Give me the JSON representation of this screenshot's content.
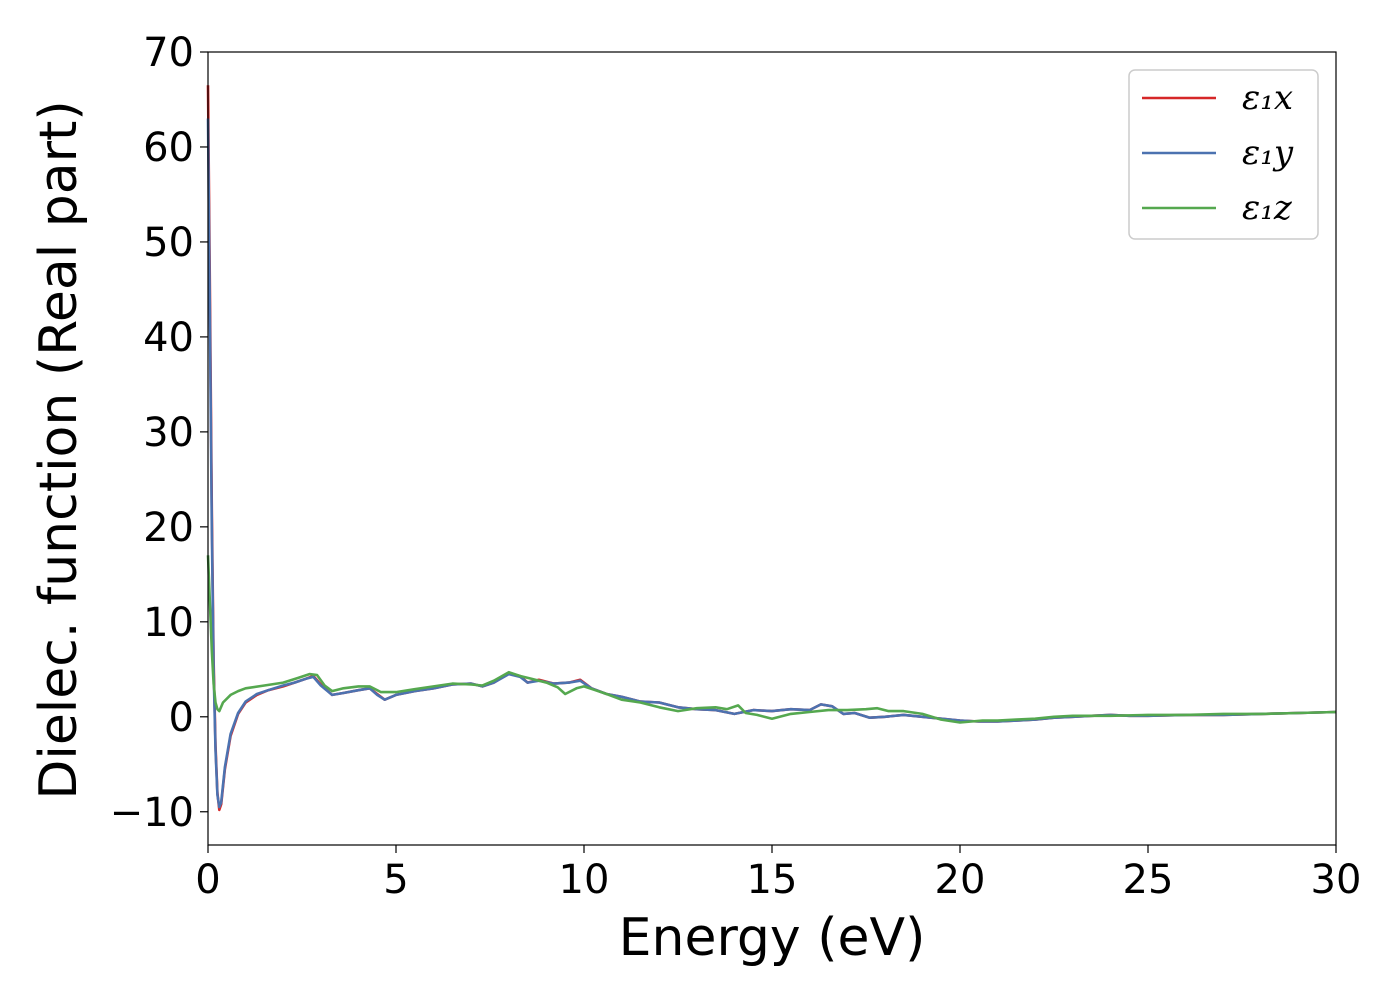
{
  "chart_data": {
    "type": "line",
    "title": "",
    "xlabel": "Energy (eV)",
    "ylabel": "Dielec. function (Real part)",
    "xlim": [
      0,
      30
    ],
    "ylim": [
      -13.5,
      70
    ],
    "xticks": [
      0,
      5,
      10,
      15,
      20,
      25,
      30
    ],
    "yticks": [
      -10,
      0,
      10,
      20,
      30,
      40,
      50,
      60,
      70
    ],
    "xtick_labels": [
      "0",
      "5",
      "10",
      "15",
      "20",
      "25",
      "30"
    ],
    "ytick_labels": [
      "−10",
      "0",
      "10",
      "20",
      "30",
      "40",
      "50",
      "60",
      "70"
    ],
    "grid": false,
    "legend_position": "top-right",
    "series": [
      {
        "name": "ε₁x",
        "color": "#d62728",
        "points": [
          [
            0.0,
            66.5
          ],
          [
            0.05,
            45.0
          ],
          [
            0.1,
            22.0
          ],
          [
            0.15,
            6.0
          ],
          [
            0.2,
            -3.0
          ],
          [
            0.25,
            -8.0
          ],
          [
            0.3,
            -9.8
          ],
          [
            0.35,
            -9.2
          ],
          [
            0.45,
            -5.5
          ],
          [
            0.6,
            -2.0
          ],
          [
            0.8,
            0.3
          ],
          [
            1.0,
            1.5
          ],
          [
            1.3,
            2.3
          ],
          [
            1.6,
            2.8
          ],
          [
            2.0,
            3.2
          ],
          [
            2.3,
            3.6
          ],
          [
            2.6,
            4.0
          ],
          [
            2.8,
            4.3
          ],
          [
            3.0,
            3.4
          ],
          [
            3.3,
            2.3
          ],
          [
            3.6,
            2.5
          ],
          [
            4.0,
            2.8
          ],
          [
            4.3,
            3.0
          ],
          [
            4.5,
            2.4
          ],
          [
            4.7,
            1.8
          ],
          [
            5.0,
            2.3
          ],
          [
            5.5,
            2.7
          ],
          [
            6.0,
            3.0
          ],
          [
            6.5,
            3.4
          ],
          [
            7.0,
            3.5
          ],
          [
            7.3,
            3.2
          ],
          [
            7.6,
            3.6
          ],
          [
            8.0,
            4.6
          ],
          [
            8.3,
            4.3
          ],
          [
            8.5,
            3.6
          ],
          [
            8.8,
            3.9
          ],
          [
            9.2,
            3.5
          ],
          [
            9.6,
            3.6
          ],
          [
            9.9,
            3.9
          ],
          [
            10.2,
            3.0
          ],
          [
            10.6,
            2.4
          ],
          [
            11.0,
            2.1
          ],
          [
            11.5,
            1.6
          ],
          [
            12.0,
            1.5
          ],
          [
            12.5,
            1.0
          ],
          [
            13.0,
            0.8
          ],
          [
            13.5,
            0.7
          ],
          [
            14.0,
            0.3
          ],
          [
            14.5,
            0.7
          ],
          [
            15.0,
            0.6
          ],
          [
            15.5,
            0.8
          ],
          [
            16.0,
            0.7
          ],
          [
            16.3,
            1.3
          ],
          [
            16.6,
            1.1
          ],
          [
            16.9,
            0.3
          ],
          [
            17.2,
            0.4
          ],
          [
            17.6,
            -0.1
          ],
          [
            18.0,
            0.0
          ],
          [
            18.5,
            0.2
          ],
          [
            19.0,
            0.0
          ],
          [
            19.5,
            -0.2
          ],
          [
            20.0,
            -0.4
          ],
          [
            20.5,
            -0.5
          ],
          [
            21.0,
            -0.5
          ],
          [
            21.5,
            -0.4
          ],
          [
            22.0,
            -0.3
          ],
          [
            22.5,
            -0.1
          ],
          [
            23.0,
            0.0
          ],
          [
            23.5,
            0.1
          ],
          [
            24.0,
            0.2
          ],
          [
            24.5,
            0.1
          ],
          [
            25.0,
            0.1
          ],
          [
            26.0,
            0.2
          ],
          [
            27.0,
            0.2
          ],
          [
            28.0,
            0.3
          ],
          [
            29.0,
            0.4
          ],
          [
            30.0,
            0.5
          ]
        ]
      },
      {
        "name": "ε₁y",
        "color": "#4c72b0",
        "points": [
          [
            0.0,
            63.0
          ],
          [
            0.05,
            42.0
          ],
          [
            0.1,
            20.0
          ],
          [
            0.15,
            5.0
          ],
          [
            0.2,
            -3.5
          ],
          [
            0.25,
            -8.2
          ],
          [
            0.3,
            -9.5
          ],
          [
            0.35,
            -9.0
          ],
          [
            0.45,
            -5.3
          ],
          [
            0.6,
            -1.8
          ],
          [
            0.8,
            0.4
          ],
          [
            1.0,
            1.6
          ],
          [
            1.3,
            2.4
          ],
          [
            1.6,
            2.8
          ],
          [
            2.0,
            3.3
          ],
          [
            2.3,
            3.6
          ],
          [
            2.6,
            4.0
          ],
          [
            2.8,
            4.2
          ],
          [
            3.0,
            3.3
          ],
          [
            3.3,
            2.3
          ],
          [
            3.6,
            2.5
          ],
          [
            4.0,
            2.8
          ],
          [
            4.3,
            3.0
          ],
          [
            4.5,
            2.3
          ],
          [
            4.7,
            1.8
          ],
          [
            5.0,
            2.3
          ],
          [
            5.5,
            2.7
          ],
          [
            6.0,
            3.0
          ],
          [
            6.5,
            3.4
          ],
          [
            7.0,
            3.5
          ],
          [
            7.3,
            3.2
          ],
          [
            7.6,
            3.6
          ],
          [
            8.0,
            4.5
          ],
          [
            8.3,
            4.2
          ],
          [
            8.5,
            3.6
          ],
          [
            8.8,
            3.8
          ],
          [
            9.2,
            3.5
          ],
          [
            9.6,
            3.6
          ],
          [
            9.9,
            3.8
          ],
          [
            10.2,
            3.0
          ],
          [
            10.6,
            2.4
          ],
          [
            11.0,
            2.1
          ],
          [
            11.5,
            1.6
          ],
          [
            12.0,
            1.5
          ],
          [
            12.5,
            1.0
          ],
          [
            13.0,
            0.8
          ],
          [
            13.5,
            0.7
          ],
          [
            14.0,
            0.3
          ],
          [
            14.5,
            0.7
          ],
          [
            15.0,
            0.6
          ],
          [
            15.5,
            0.8
          ],
          [
            16.0,
            0.7
          ],
          [
            16.3,
            1.3
          ],
          [
            16.6,
            1.1
          ],
          [
            16.9,
            0.3
          ],
          [
            17.2,
            0.4
          ],
          [
            17.6,
            -0.1
          ],
          [
            18.0,
            0.0
          ],
          [
            18.5,
            0.2
          ],
          [
            19.0,
            0.0
          ],
          [
            19.5,
            -0.2
          ],
          [
            20.0,
            -0.4
          ],
          [
            20.5,
            -0.5
          ],
          [
            21.0,
            -0.5
          ],
          [
            21.5,
            -0.4
          ],
          [
            22.0,
            -0.3
          ],
          [
            22.5,
            -0.1
          ],
          [
            23.0,
            0.0
          ],
          [
            23.5,
            0.1
          ],
          [
            24.0,
            0.2
          ],
          [
            24.5,
            0.1
          ],
          [
            25.0,
            0.1
          ],
          [
            26.0,
            0.2
          ],
          [
            27.0,
            0.2
          ],
          [
            28.0,
            0.3
          ],
          [
            29.0,
            0.4
          ],
          [
            30.0,
            0.5
          ]
        ]
      },
      {
        "name": "ε₁z",
        "color": "#55a84f",
        "points": [
          [
            0.0,
            17.0
          ],
          [
            0.05,
            12.0
          ],
          [
            0.1,
            7.0
          ],
          [
            0.15,
            3.5
          ],
          [
            0.2,
            1.5
          ],
          [
            0.25,
            0.8
          ],
          [
            0.3,
            0.6
          ],
          [
            0.4,
            1.5
          ],
          [
            0.6,
            2.3
          ],
          [
            0.8,
            2.7
          ],
          [
            1.0,
            3.0
          ],
          [
            1.5,
            3.3
          ],
          [
            2.0,
            3.6
          ],
          [
            2.4,
            4.1
          ],
          [
            2.7,
            4.5
          ],
          [
            2.9,
            4.4
          ],
          [
            3.1,
            3.3
          ],
          [
            3.3,
            2.7
          ],
          [
            3.6,
            3.0
          ],
          [
            4.0,
            3.2
          ],
          [
            4.3,
            3.2
          ],
          [
            4.6,
            2.6
          ],
          [
            5.0,
            2.6
          ],
          [
            5.5,
            2.9
          ],
          [
            6.0,
            3.2
          ],
          [
            6.5,
            3.5
          ],
          [
            7.0,
            3.4
          ],
          [
            7.3,
            3.3
          ],
          [
            7.6,
            3.8
          ],
          [
            8.0,
            4.7
          ],
          [
            8.3,
            4.3
          ],
          [
            8.6,
            4.0
          ],
          [
            9.0,
            3.6
          ],
          [
            9.3,
            3.1
          ],
          [
            9.5,
            2.4
          ],
          [
            9.8,
            3.0
          ],
          [
            10.0,
            3.2
          ],
          [
            10.3,
            2.8
          ],
          [
            10.6,
            2.4
          ],
          [
            11.0,
            1.8
          ],
          [
            11.5,
            1.5
          ],
          [
            12.0,
            1.0
          ],
          [
            12.5,
            0.6
          ],
          [
            13.0,
            0.9
          ],
          [
            13.5,
            1.0
          ],
          [
            13.8,
            0.8
          ],
          [
            14.1,
            1.2
          ],
          [
            14.3,
            0.4
          ],
          [
            14.6,
            0.2
          ],
          [
            15.0,
            -0.2
          ],
          [
            15.5,
            0.3
          ],
          [
            16.0,
            0.5
          ],
          [
            16.5,
            0.7
          ],
          [
            17.0,
            0.7
          ],
          [
            17.5,
            0.8
          ],
          [
            17.8,
            0.9
          ],
          [
            18.1,
            0.6
          ],
          [
            18.5,
            0.6
          ],
          [
            19.0,
            0.3
          ],
          [
            19.5,
            -0.3
          ],
          [
            20.0,
            -0.6
          ],
          [
            20.3,
            -0.5
          ],
          [
            20.6,
            -0.4
          ],
          [
            21.0,
            -0.4
          ],
          [
            21.5,
            -0.3
          ],
          [
            22.0,
            -0.2
          ],
          [
            22.5,
            0.0
          ],
          [
            23.0,
            0.1
          ],
          [
            24.0,
            0.1
          ],
          [
            25.0,
            0.2
          ],
          [
            26.0,
            0.2
          ],
          [
            27.0,
            0.3
          ],
          [
            28.0,
            0.3
          ],
          [
            29.0,
            0.4
          ],
          [
            30.0,
            0.5
          ]
        ]
      }
    ]
  }
}
